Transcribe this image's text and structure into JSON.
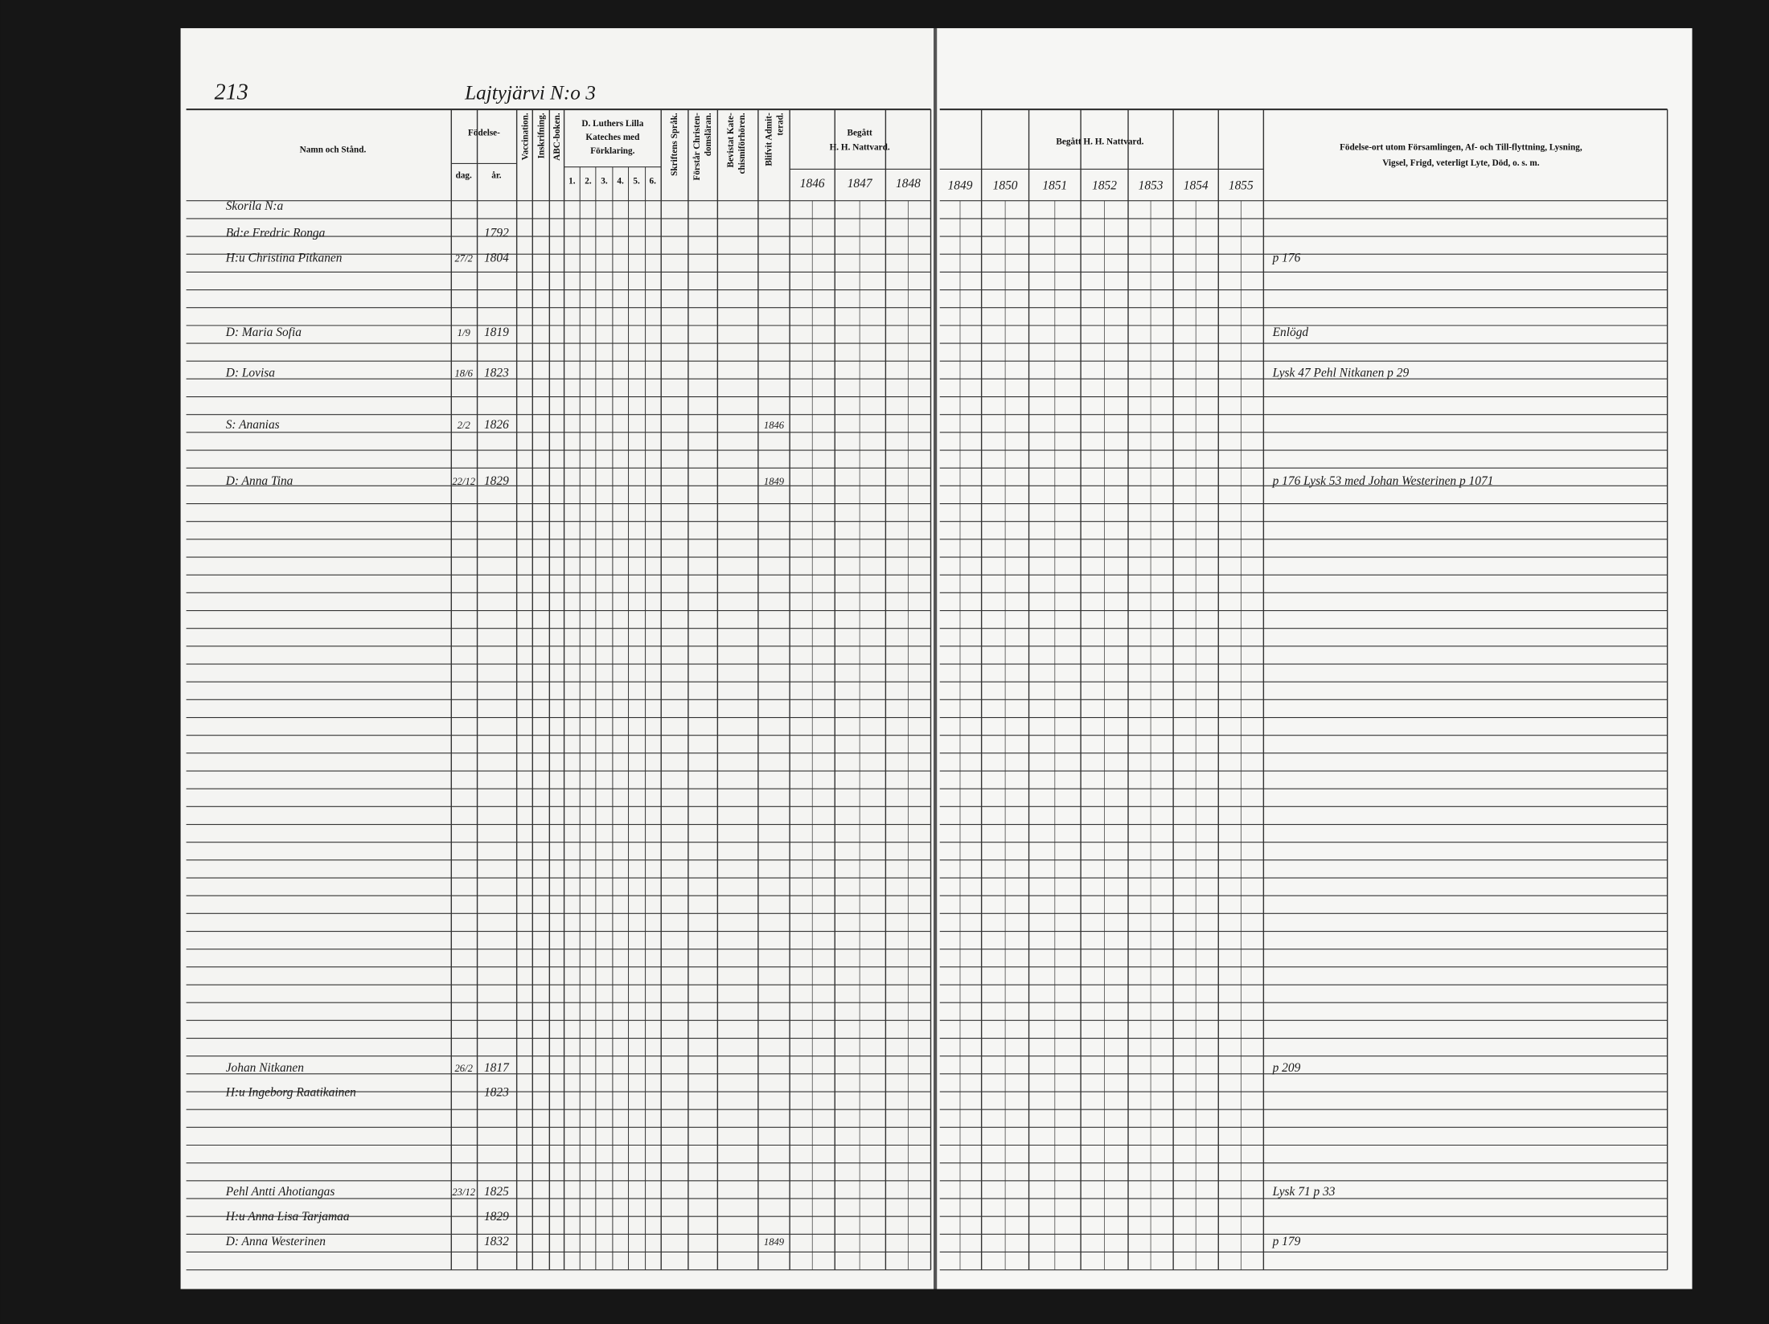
{
  "left_page": {
    "page_number": "213",
    "title": "Lajtyjärvi N:o 3",
    "headers": {
      "name": "Namn och Stånd.",
      "birth": "Födelse-",
      "day": "dag.",
      "year": "år.",
      "vaccination": "Vaccination.",
      "enrolment": "Inskrifning.",
      "abc": "ABC-boken.",
      "catechism": [
        "D. Luthers Lilla",
        "Kateches med",
        "Förklaring."
      ],
      "catechism_parts": [
        "1.",
        "2.",
        "3.",
        "4.",
        "5.",
        "6."
      ],
      "scripture": "Skriftens Språk.",
      "understands": [
        "Förstår Christen-",
        "domsläran."
      ],
      "attended": [
        "Bevistat Kate-",
        "chismiförhören."
      ],
      "admitted": [
        "Blifvit Admit-",
        "terad."
      ],
      "communion": [
        "Begått",
        "H. H. Nattvard."
      ],
      "years": [
        "1846",
        "1847",
        "1848"
      ]
    },
    "household": "Skorila N:a",
    "entries": [
      {
        "name": "Bd:e Fredric Ronga",
        "year": "1792"
      },
      {
        "name": "H:u Christina Pitkanen",
        "day": "27/2",
        "year": "1804",
        "note": "p 176"
      },
      {
        "name": "D: Maria Sofia",
        "day": "1/9",
        "year": "1819",
        "note": "Enlögd"
      },
      {
        "name": "D: Lovisa",
        "day": "18/6",
        "year": "1823",
        "note": "Lysk 47 Pehl Nitkanen p 29"
      },
      {
        "name": "S: Ananias",
        "day": "2/2",
        "year": "1826",
        "admitted": "1846"
      },
      {
        "name": "D: Anna Tina",
        "day": "22/12",
        "year": "1829",
        "admitted": "1849",
        "note": "p 176 Lysk 53 med Johan Westerinen p 1071"
      },
      {
        "name": "Johan Nitkanen",
        "day": "26/2",
        "year": "1817",
        "note": "p 209"
      },
      {
        "name": "H:u Ingeborg Raatikainen",
        "year": "1823"
      },
      {
        "name": "Pehl Antti Ahotiangas",
        "day": "23/12",
        "year": "1825",
        "note": "Lysk 71 p 33"
      },
      {
        "name": "H:u Anna Lisa Tarjamaa",
        "year": "1829"
      },
      {
        "name": "D: Anna Westerinen",
        "year": "1832",
        "admitted": "1849",
        "note": "p 179"
      }
    ]
  },
  "right_page": {
    "headers": {
      "communion": "Begått H. H. Nattvard.",
      "years": [
        "1849",
        "1850",
        "1851",
        "1852",
        "1853",
        "1854",
        "1855"
      ],
      "remarks": [
        "Födelse-ort utom Församlingen, Af- och Till-flyttning, Lysning,",
        "Vigsel, Frigd, veterligt Lyte, Död, o. s. m."
      ]
    }
  }
}
